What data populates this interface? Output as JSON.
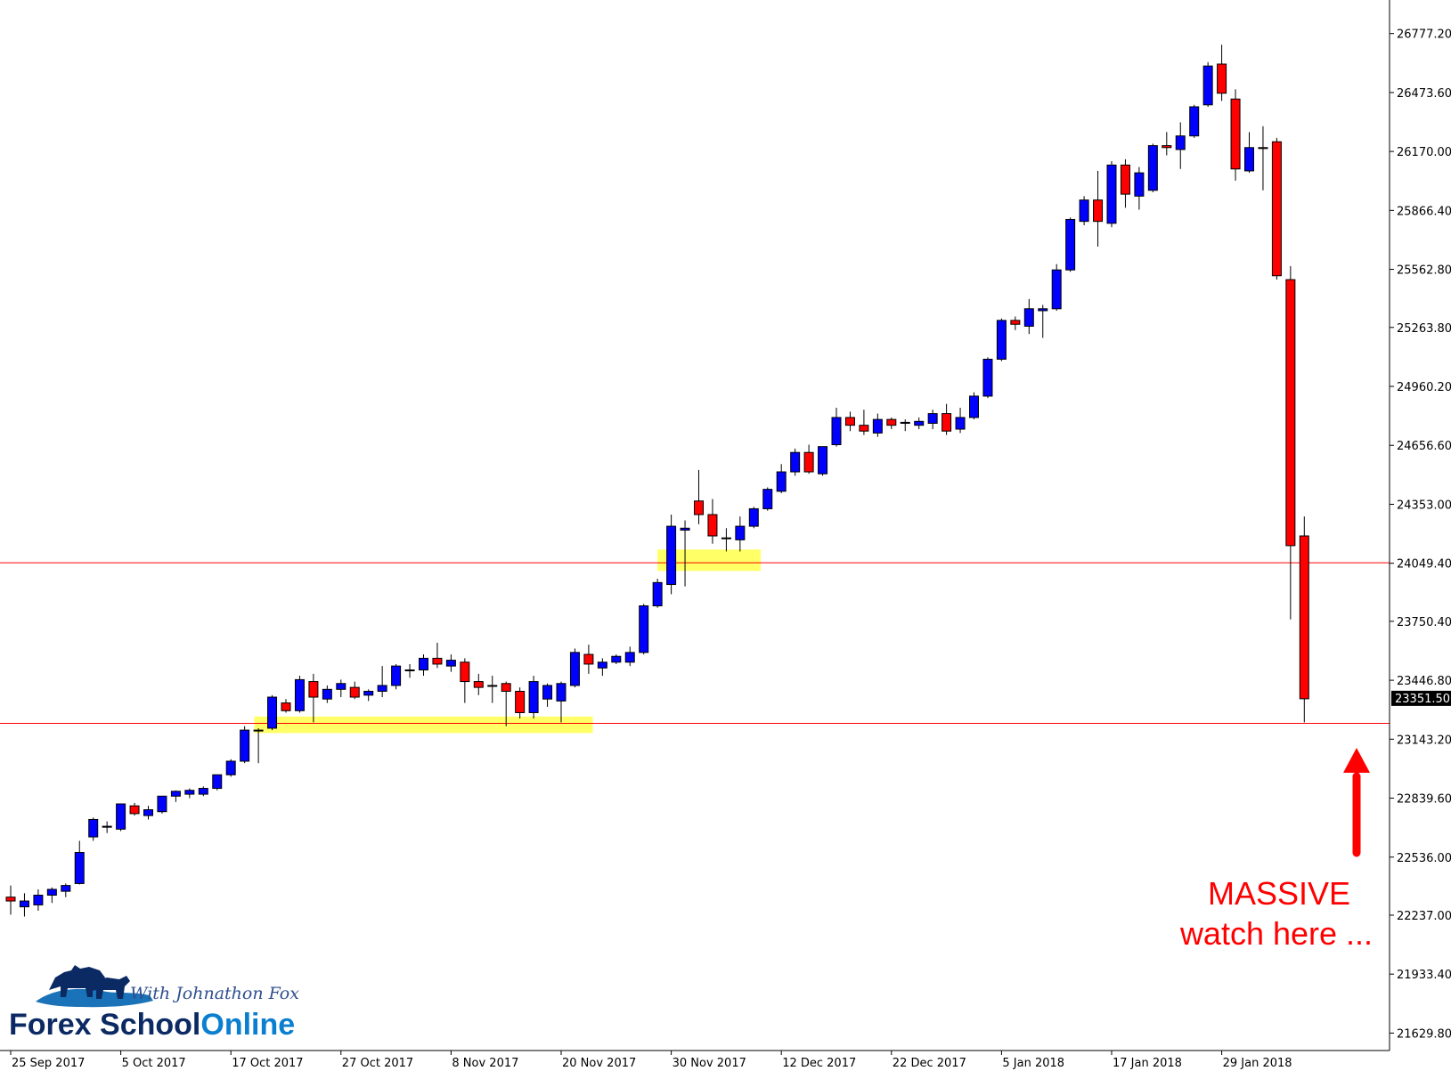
{
  "chart_data": {
    "type": "candlestick",
    "title": "",
    "price_label": "23351.50",
    "y_ticks": [
      26777.2,
      26473.6,
      26170.0,
      25866.4,
      25562.8,
      25263.8,
      24960.2,
      24656.6,
      24353.0,
      24049.4,
      23750.4,
      23446.8,
      23143.2,
      22839.6,
      22536.0,
      22237.0,
      21933.4,
      21629.8
    ],
    "ylim": [
      21540,
      26950
    ],
    "x_ticks": [
      "25 Sep 2017",
      "5 Oct 2017",
      "17 Oct 2017",
      "27 Oct 2017",
      "8 Nov 2017",
      "20 Nov 2017",
      "30 Nov 2017",
      "12 Dec 2017",
      "22 Dec 2017",
      "5 Jan 2018",
      "17 Jan 2018",
      "29 Jan 2018"
    ],
    "x_tick_bar_index": [
      0,
      8,
      16,
      24,
      32,
      40,
      48,
      56,
      64,
      72,
      80,
      88
    ],
    "colors": {
      "bull": "#0000ff",
      "bear": "#ff0000",
      "level": "#ff0000",
      "zone": "#ffff66"
    },
    "levels": [
      24052,
      23225
    ],
    "zones": [
      {
        "from_bar": 17.7,
        "to_bar": 42.3,
        "low": 23175,
        "high": 23260
      },
      {
        "from_bar": 47,
        "to_bar": 54.5,
        "low": 24010,
        "high": 24120
      }
    ],
    "candles": [
      {
        "o": 22330,
        "h": 22390,
        "l": 22240,
        "c": 22310
      },
      {
        "o": 22280,
        "h": 22350,
        "l": 22230,
        "c": 22310
      },
      {
        "o": 22290,
        "h": 22370,
        "l": 22260,
        "c": 22340
      },
      {
        "o": 22340,
        "h": 22380,
        "l": 22300,
        "c": 22370
      },
      {
        "o": 22360,
        "h": 22400,
        "l": 22330,
        "c": 22390
      },
      {
        "o": 22400,
        "h": 22620,
        "l": 22395,
        "c": 22560
      },
      {
        "o": 22640,
        "h": 22740,
        "l": 22620,
        "c": 22730
      },
      {
        "o": 22690,
        "h": 22720,
        "l": 22660,
        "c": 22695
      },
      {
        "o": 22680,
        "h": 22810,
        "l": 22670,
        "c": 22810
      },
      {
        "o": 22800,
        "h": 22815,
        "l": 22750,
        "c": 22760
      },
      {
        "o": 22750,
        "h": 22800,
        "l": 22730,
        "c": 22780
      },
      {
        "o": 22770,
        "h": 22850,
        "l": 22760,
        "c": 22850
      },
      {
        "o": 22850,
        "h": 22880,
        "l": 22820,
        "c": 22875
      },
      {
        "o": 22860,
        "h": 22890,
        "l": 22840,
        "c": 22880
      },
      {
        "o": 22860,
        "h": 22900,
        "l": 22850,
        "c": 22890
      },
      {
        "o": 22890,
        "h": 22960,
        "l": 22880,
        "c": 22960
      },
      {
        "o": 22960,
        "h": 23040,
        "l": 22950,
        "c": 23030
      },
      {
        "o": 23030,
        "h": 23210,
        "l": 23020,
        "c": 23190
      },
      {
        "o": 23190,
        "h": 23200,
        "l": 23020,
        "c": 23190
      },
      {
        "o": 23200,
        "h": 23370,
        "l": 23190,
        "c": 23360
      },
      {
        "o": 23330,
        "h": 23350,
        "l": 23280,
        "c": 23290
      },
      {
        "o": 23290,
        "h": 23470,
        "l": 23280,
        "c": 23450
      },
      {
        "o": 23440,
        "h": 23480,
        "l": 23230,
        "c": 23360
      },
      {
        "o": 23350,
        "h": 23420,
        "l": 23330,
        "c": 23400
      },
      {
        "o": 23400,
        "h": 23450,
        "l": 23360,
        "c": 23430
      },
      {
        "o": 23410,
        "h": 23440,
        "l": 23350,
        "c": 23360
      },
      {
        "o": 23370,
        "h": 23400,
        "l": 23340,
        "c": 23390
      },
      {
        "o": 23390,
        "h": 23520,
        "l": 23360,
        "c": 23420
      },
      {
        "o": 23420,
        "h": 23530,
        "l": 23400,
        "c": 23520
      },
      {
        "o": 23500,
        "h": 23530,
        "l": 23460,
        "c": 23500
      },
      {
        "o": 23500,
        "h": 23580,
        "l": 23470,
        "c": 23560
      },
      {
        "o": 23560,
        "h": 23640,
        "l": 23510,
        "c": 23530
      },
      {
        "o": 23520,
        "h": 23580,
        "l": 23490,
        "c": 23550
      },
      {
        "o": 23540,
        "h": 23560,
        "l": 23330,
        "c": 23440
      },
      {
        "o": 23440,
        "h": 23480,
        "l": 23370,
        "c": 23410
      },
      {
        "o": 23420,
        "h": 23470,
        "l": 23330,
        "c": 23420
      },
      {
        "o": 23430,
        "h": 23440,
        "l": 23210,
        "c": 23390
      },
      {
        "o": 23390,
        "h": 23410,
        "l": 23250,
        "c": 23280
      },
      {
        "o": 23280,
        "h": 23470,
        "l": 23250,
        "c": 23440
      },
      {
        "o": 23350,
        "h": 23430,
        "l": 23310,
        "c": 23420
      },
      {
        "o": 23340,
        "h": 23440,
        "l": 23230,
        "c": 23430
      },
      {
        "o": 23420,
        "h": 23610,
        "l": 23410,
        "c": 23590
      },
      {
        "o": 23580,
        "h": 23630,
        "l": 23480,
        "c": 23530
      },
      {
        "o": 23510,
        "h": 23560,
        "l": 23470,
        "c": 23540
      },
      {
        "o": 23540,
        "h": 23580,
        "l": 23530,
        "c": 23570
      },
      {
        "o": 23540,
        "h": 23620,
        "l": 23520,
        "c": 23590
      },
      {
        "o": 23590,
        "h": 23840,
        "l": 23580,
        "c": 23830
      },
      {
        "o": 23830,
        "h": 23970,
        "l": 23820,
        "c": 23950
      },
      {
        "o": 23940,
        "h": 24300,
        "l": 23890,
        "c": 24240
      },
      {
        "o": 24220,
        "h": 24270,
        "l": 23930,
        "c": 24230
      },
      {
        "o": 24370,
        "h": 24530,
        "l": 24250,
        "c": 24300
      },
      {
        "o": 24300,
        "h": 24380,
        "l": 24150,
        "c": 24190
      },
      {
        "o": 24180,
        "h": 24230,
        "l": 24110,
        "c": 24180
      },
      {
        "o": 24170,
        "h": 24290,
        "l": 24110,
        "c": 24240
      },
      {
        "o": 24240,
        "h": 24340,
        "l": 24230,
        "c": 24330
      },
      {
        "o": 24330,
        "h": 24440,
        "l": 24320,
        "c": 24430
      },
      {
        "o": 24420,
        "h": 24560,
        "l": 24410,
        "c": 24520
      },
      {
        "o": 24520,
        "h": 24640,
        "l": 24500,
        "c": 24620
      },
      {
        "o": 24620,
        "h": 24660,
        "l": 24510,
        "c": 24520
      },
      {
        "o": 24510,
        "h": 24650,
        "l": 24500,
        "c": 24650
      },
      {
        "o": 24660,
        "h": 24850,
        "l": 24650,
        "c": 24800
      },
      {
        "o": 24800,
        "h": 24830,
        "l": 24730,
        "c": 24760
      },
      {
        "o": 24760,
        "h": 24840,
        "l": 24710,
        "c": 24730
      },
      {
        "o": 24720,
        "h": 24820,
        "l": 24700,
        "c": 24790
      },
      {
        "o": 24790,
        "h": 24800,
        "l": 24740,
        "c": 24760
      },
      {
        "o": 24770,
        "h": 24790,
        "l": 24730,
        "c": 24775
      },
      {
        "o": 24760,
        "h": 24800,
        "l": 24740,
        "c": 24780
      },
      {
        "o": 24770,
        "h": 24840,
        "l": 24740,
        "c": 24820
      },
      {
        "o": 24820,
        "h": 24870,
        "l": 24710,
        "c": 24730
      },
      {
        "o": 24740,
        "h": 24850,
        "l": 24720,
        "c": 24800
      },
      {
        "o": 24800,
        "h": 24930,
        "l": 24790,
        "c": 24910
      },
      {
        "o": 24910,
        "h": 25110,
        "l": 24900,
        "c": 25100
      },
      {
        "o": 25100,
        "h": 25310,
        "l": 25090,
        "c": 25300
      },
      {
        "o": 25300,
        "h": 25320,
        "l": 25250,
        "c": 25280
      },
      {
        "o": 25270,
        "h": 25410,
        "l": 25230,
        "c": 25360
      },
      {
        "o": 25350,
        "h": 25380,
        "l": 25210,
        "c": 25360
      },
      {
        "o": 25360,
        "h": 25590,
        "l": 25350,
        "c": 25560
      },
      {
        "o": 25560,
        "h": 25830,
        "l": 25550,
        "c": 25820
      },
      {
        "o": 25810,
        "h": 25940,
        "l": 25790,
        "c": 25920
      },
      {
        "o": 25920,
        "h": 26070,
        "l": 25680,
        "c": 25810
      },
      {
        "o": 25800,
        "h": 26120,
        "l": 25780,
        "c": 26100
      },
      {
        "o": 26100,
        "h": 26130,
        "l": 25880,
        "c": 25950
      },
      {
        "o": 25940,
        "h": 26090,
        "l": 25870,
        "c": 26060
      },
      {
        "o": 25970,
        "h": 26210,
        "l": 25960,
        "c": 26200
      },
      {
        "o": 26200,
        "h": 26270,
        "l": 26150,
        "c": 26190
      },
      {
        "o": 26180,
        "h": 26320,
        "l": 26080,
        "c": 26250
      },
      {
        "o": 26250,
        "h": 26410,
        "l": 26240,
        "c": 26400
      },
      {
        "o": 26410,
        "h": 26630,
        "l": 26400,
        "c": 26610
      },
      {
        "o": 26620,
        "h": 26720,
        "l": 26430,
        "c": 26470
      },
      {
        "o": 26440,
        "h": 26490,
        "l": 26020,
        "c": 26080
      },
      {
        "o": 26070,
        "h": 26270,
        "l": 26060,
        "c": 26190
      },
      {
        "o": 26190,
        "h": 26300,
        "l": 25970,
        "c": 26185
      },
      {
        "o": 26220,
        "h": 26240,
        "l": 25510,
        "c": 25530
      },
      {
        "o": 25510,
        "h": 25580,
        "l": 23760,
        "c": 24140
      },
      {
        "o": 24190,
        "h": 24290,
        "l": 23230,
        "c": 23351.5
      }
    ]
  },
  "annotation": {
    "line1": "MASSIVE",
    "line2": "watch here ..."
  },
  "logo": {
    "tagline": "With Johnathon Fox",
    "name_part1": "Forex School",
    "name_part2": "Online",
    "color_dark": "#0b2a63",
    "color_accent": "#0a7fd0"
  }
}
